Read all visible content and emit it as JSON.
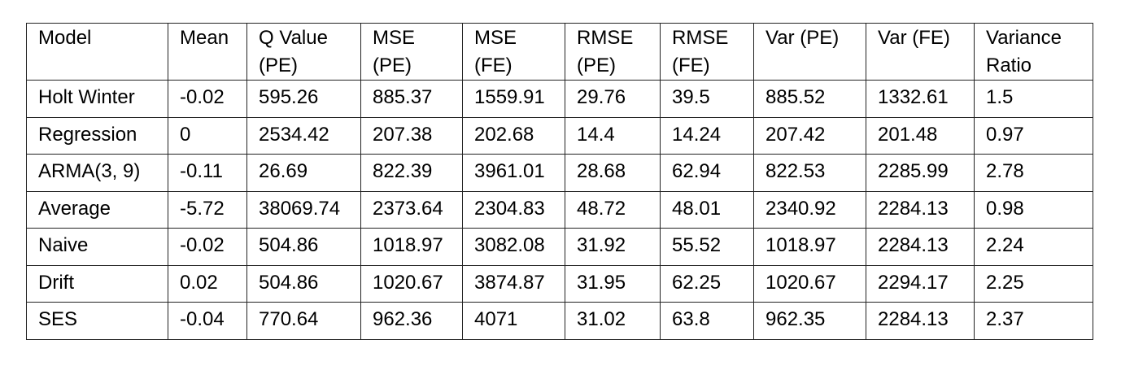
{
  "table": {
    "headers": [
      [
        "Model"
      ],
      [
        "Mean"
      ],
      [
        "Q Value",
        "(PE)"
      ],
      [
        "MSE",
        "(PE)"
      ],
      [
        "MSE",
        "(FE)"
      ],
      [
        "RMSE",
        "(PE)"
      ],
      [
        "RMSE",
        "(FE)"
      ],
      [
        "Var (PE)"
      ],
      [
        "Var (FE)"
      ],
      [
        "Variance",
        "Ratio"
      ]
    ],
    "rows": [
      [
        "Holt Winter",
        "-0.02",
        "595.26",
        "885.37",
        "1559.91",
        "29.76",
        "39.5",
        "885.52",
        "1332.61",
        "1.5"
      ],
      [
        "Regression",
        "0",
        "2534.42",
        "207.38",
        "202.68",
        "14.4",
        "14.24",
        "207.42",
        "201.48",
        "0.97"
      ],
      [
        "ARMA(3, 9)",
        "-0.11",
        "26.69",
        "822.39",
        "3961.01",
        "28.68",
        "62.94",
        "822.53",
        "2285.99",
        "2.78"
      ],
      [
        "Average",
        "-5.72",
        "38069.74",
        "2373.64",
        "2304.83",
        "48.72",
        "48.01",
        "2340.92",
        "2284.13",
        "0.98"
      ],
      [
        "Naive",
        "-0.02",
        "504.86",
        "1018.97",
        "3082.08",
        "31.92",
        "55.52",
        "1018.97",
        "2284.13",
        "2.24"
      ],
      [
        "Drift",
        "0.02",
        "504.86",
        "1020.67",
        "3874.87",
        "31.95",
        "62.25",
        "1020.67",
        "2294.17",
        "2.25"
      ],
      [
        "SES",
        "-0.04",
        "770.64",
        "962.36",
        "4071",
        "31.02",
        "63.8",
        "962.35",
        "2284.13",
        "2.37"
      ]
    ]
  }
}
